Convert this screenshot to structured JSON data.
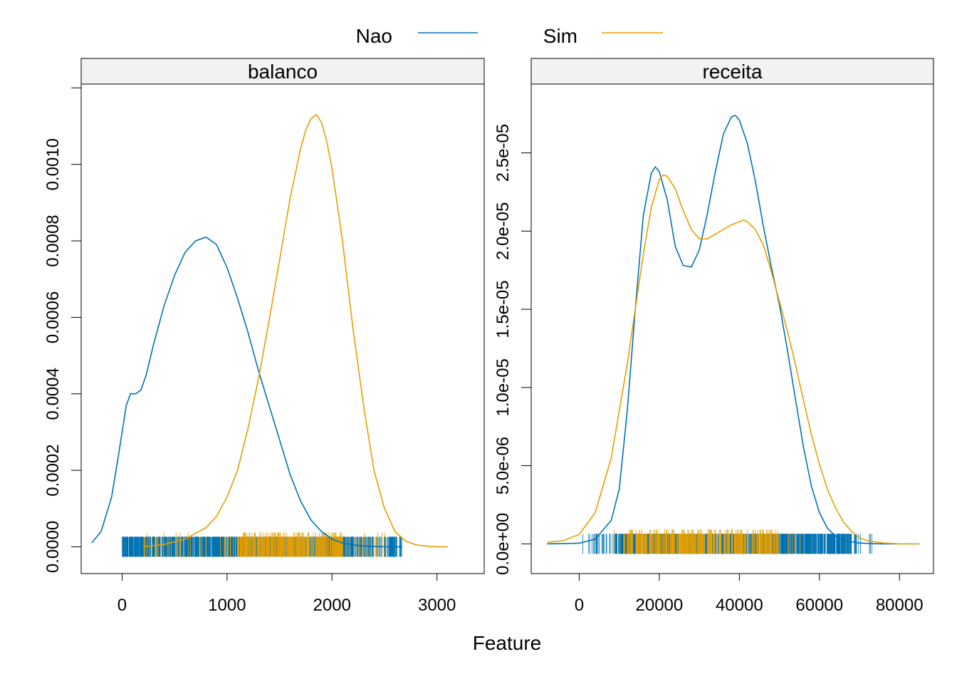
{
  "xlabel": "Feature",
  "legend": {
    "items": [
      {
        "label": "Nao",
        "color": "#0072B2"
      },
      {
        "label": "Sim",
        "color": "#E69F00"
      }
    ]
  },
  "chart_data": [
    {
      "type": "line",
      "panel": "balanco",
      "xlim": [
        -390,
        3450
      ],
      "ylim": [
        -7e-05,
        0.00121
      ],
      "xticks": [
        0,
        1000,
        2000,
        3000
      ],
      "xtick_labels": [
        "0",
        "1000",
        "2000",
        "3000"
      ],
      "yticks": [
        0,
        0.0002,
        0.0004,
        0.0006,
        0.0008,
        0.001
      ],
      "ytick_labels": [
        "0.0000",
        "0.0002",
        "0.0004",
        "0.0006",
        "0.0008",
        "0.0010"
      ],
      "series": [
        {
          "name": "Nao",
          "color": "#0072B2",
          "x": [
            -290,
            -200,
            -100,
            -40,
            0,
            40,
            80,
            130,
            180,
            230,
            300,
            400,
            500,
            600,
            700,
            800,
            900,
            1000,
            1100,
            1200,
            1300,
            1400,
            1500,
            1600,
            1700,
            1800,
            1900,
            2000,
            2100,
            2200,
            2300,
            2400,
            2500,
            2600,
            2670
          ],
          "y": [
            1e-05,
            4e-05,
            0.00013,
            0.00023,
            0.0003,
            0.00037,
            0.0004,
            0.0004,
            0.00041,
            0.00045,
            0.00053,
            0.00063,
            0.00071,
            0.00077,
            0.0008,
            0.00081,
            0.00079,
            0.00073,
            0.00065,
            0.00056,
            0.00046,
            0.00037,
            0.00028,
            0.00019,
            0.00012,
            7e-05,
            4e-05,
            2e-05,
            1e-05,
            5e-06,
            2e-06,
            1e-06,
            0,
            0,
            0
          ]
        },
        {
          "name": "Sim",
          "color": "#E69F00",
          "x": [
            200,
            400,
            600,
            800,
            900,
            1000,
            1100,
            1200,
            1300,
            1400,
            1500,
            1600,
            1700,
            1750,
            1800,
            1850,
            1900,
            1950,
            2000,
            2100,
            2200,
            2300,
            2400,
            2500,
            2600,
            2700,
            2800,
            2900,
            3000,
            3100
          ],
          "y": [
            0,
            6e-06,
            2e-05,
            5e-05,
            8e-05,
            0.00013,
            0.0002,
            0.00031,
            0.00044,
            0.00059,
            0.00075,
            0.00091,
            0.00104,
            0.00109,
            0.00112,
            0.00113,
            0.00111,
            0.00106,
            0.00099,
            0.0008,
            0.00057,
            0.00037,
            0.0002,
            0.0001,
            4e-05,
            1.5e-05,
            5e-06,
            2e-06,
            0,
            0
          ]
        }
      ],
      "rug": [
        {
          "name": "Nao",
          "color": "#0072B2",
          "from": 0,
          "to": 2680,
          "density": "dense",
          "sparse_from": 2200
        },
        {
          "name": "Sim",
          "color": "#E69F00",
          "from": 200,
          "to": 2500,
          "density": "medium",
          "dense_from": 1100,
          "dense_to": 2100
        }
      ]
    },
    {
      "type": "line",
      "panel": "receita",
      "xlim": [
        -12000,
        88500
      ],
      "ylim": [
        -1.9e-06,
        2.94e-05
      ],
      "xticks": [
        0,
        20000,
        40000,
        60000,
        80000
      ],
      "xtick_labels": [
        "0",
        "20000",
        "40000",
        "60000",
        "80000"
      ],
      "yticks": [
        0,
        5e-06,
        1e-05,
        1.5e-05,
        2e-05,
        2.5e-05
      ],
      "ytick_labels": [
        "0.0e+00",
        "5.0e-06",
        "1.0e-05",
        "1.5e-05",
        "2.0e-05",
        "2.5e-05"
      ],
      "series": [
        {
          "name": "Nao",
          "color": "#0072B2",
          "x": [
            -8000,
            0,
            4000,
            8000,
            10000,
            12000,
            14000,
            16000,
            18000,
            19000,
            20000,
            22000,
            24000,
            26000,
            28000,
            30000,
            32000,
            34000,
            36000,
            38000,
            39000,
            40000,
            42000,
            44000,
            46000,
            48000,
            50000,
            52000,
            54000,
            56000,
            58000,
            60000,
            62000,
            64000,
            66000,
            70000,
            75000,
            80000,
            85000
          ],
          "y": [
            0,
            4e-08,
            3e-07,
            1.5e-06,
            3.5e-06,
            8.5e-06,
            1.5e-05,
            2.1e-05,
            2.37e-05,
            2.41e-05,
            2.38e-05,
            2.2e-05,
            1.9e-05,
            1.78e-05,
            1.77e-05,
            1.88e-05,
            2.11e-05,
            2.38e-05,
            2.62e-05,
            2.73e-05,
            2.74e-05,
            2.71e-05,
            2.56e-05,
            2.32e-05,
            2.03e-05,
            1.77e-05,
            1.53e-05,
            1.24e-05,
            9.3e-06,
            6.2e-06,
            3.7e-06,
            2e-06,
            1e-06,
            5e-07,
            2e-07,
            5e-08,
            0,
            0,
            0
          ]
        },
        {
          "name": "Sim",
          "color": "#E69F00",
          "x": [
            -8000,
            -4000,
            0,
            4000,
            8000,
            12000,
            16000,
            18000,
            20000,
            21000,
            22000,
            24000,
            26000,
            28000,
            30000,
            32000,
            34000,
            36000,
            38000,
            40000,
            41000,
            42000,
            44000,
            46000,
            48000,
            50000,
            52000,
            54000,
            56000,
            58000,
            60000,
            62000,
            64000,
            66000,
            68000,
            70000,
            72000,
            76000,
            80000,
            85000
          ],
          "y": [
            1e-07,
            2e-07,
            6e-07,
            2e-06,
            5.5e-06,
            1.15e-05,
            1.85e-05,
            2.15e-05,
            2.33e-05,
            2.36e-05,
            2.35e-05,
            2.27e-05,
            2.13e-05,
            2.01e-05,
            1.95e-05,
            1.95e-05,
            1.98e-05,
            2.01e-05,
            2.04e-05,
            2.06e-05,
            2.07e-05,
            2.06e-05,
            2.01e-05,
            1.91e-05,
            1.74e-05,
            1.55e-05,
            1.36e-05,
            1.15e-05,
            9.2e-06,
            7e-06,
            5.1e-06,
            3.5e-06,
            2.3e-06,
            1.4e-06,
            8e-07,
            4e-07,
            2e-07,
            5e-08,
            0,
            0
          ]
        }
      ],
      "rug": [
        {
          "name": "Nao",
          "color": "#0072B2",
          "from": 500,
          "to": 73500,
          "density": "dense",
          "dense_from": 9000,
          "dense_to": 68000
        },
        {
          "name": "Sim",
          "color": "#E69F00",
          "from": 8000,
          "to": 56000,
          "density": "medium",
          "dense_from": 12000,
          "dense_to": 50000
        }
      ]
    }
  ]
}
